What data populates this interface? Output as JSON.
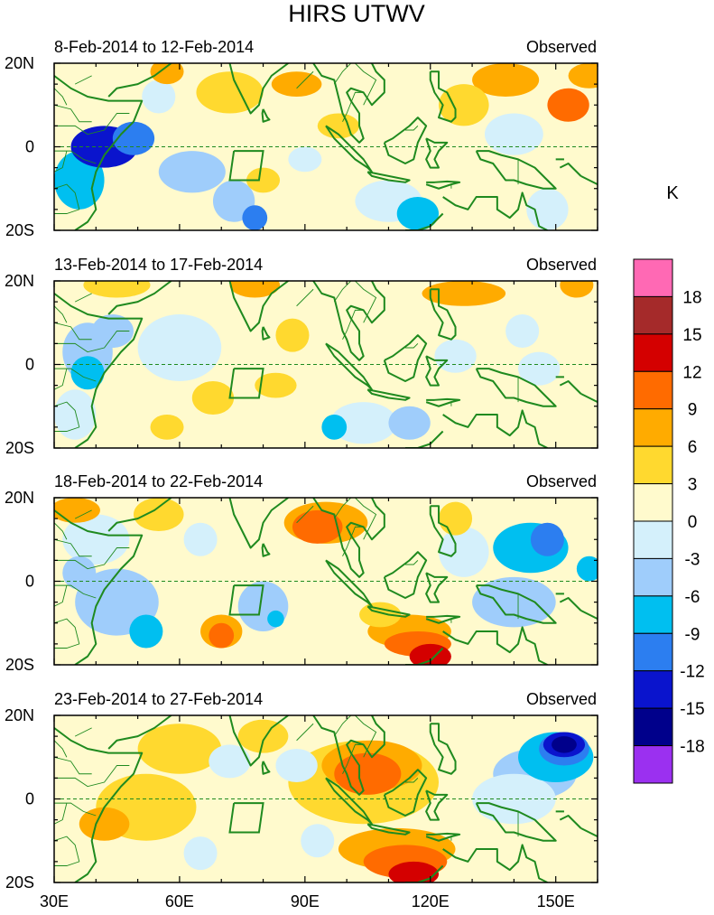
{
  "chart_data": {
    "type": "heatmap",
    "title": "HIRS UTWV",
    "units_label": "K",
    "xaxis": {
      "range": [
        30,
        160
      ],
      "ticks": [
        30,
        60,
        90,
        120,
        150
      ],
      "tick_labels": [
        "30E",
        "60E",
        "90E",
        "120E",
        "150E"
      ]
    },
    "yaxis": {
      "range": [
        -20,
        20
      ],
      "ticks": [
        20,
        0,
        -20
      ],
      "tick_labels": [
        "20N",
        "0",
        "20S"
      ]
    },
    "colorbar": {
      "levels": [
        -18,
        -15,
        -12,
        -9,
        -6,
        -3,
        0,
        3,
        6,
        9,
        12,
        15,
        18
      ],
      "labels": [
        "18",
        "15",
        "12",
        "9",
        "6",
        "3",
        "0",
        "-3",
        "-6",
        "-9",
        "-12",
        "-15",
        "-18"
      ],
      "colors": [
        "#9b30f0",
        "#00008b",
        "#0a14cd",
        "#2c7ef0",
        "#00bff0",
        "#9fcdfb",
        "#d4f0fb",
        "#fffacd",
        "#ffd92f",
        "#ffab00",
        "#ff6b00",
        "#d40000",
        "#a52a2a",
        "#ff69b4"
      ]
    },
    "panels": [
      {
        "left_label": "8-Feb-2014 to 12-Feb-2014",
        "right_label": "Observed",
        "anomalies": [
          {
            "lon": 42,
            "lat": 0,
            "value": -15,
            "slon": 8,
            "slat": 5
          },
          {
            "lon": 49,
            "lat": 2,
            "value": -12,
            "slon": 5,
            "slat": 4
          },
          {
            "lon": 36,
            "lat": -8,
            "value": -9,
            "slon": 6,
            "slat": 7
          },
          {
            "lon": 63,
            "lat": -6,
            "value": -6,
            "slon": 8,
            "slat": 5
          },
          {
            "lon": 78,
            "lat": -17,
            "value": -12,
            "slon": 3,
            "slat": 3
          },
          {
            "lon": 73,
            "lat": -13,
            "value": -6,
            "slon": 5,
            "slat": 5
          },
          {
            "lon": 55,
            "lat": 12,
            "value": -3,
            "slon": 4,
            "slat": 4
          },
          {
            "lon": 90,
            "lat": -3,
            "value": -3,
            "slon": 4,
            "slat": 3
          },
          {
            "lon": 117,
            "lat": -16,
            "value": -9,
            "slon": 5,
            "slat": 4
          },
          {
            "lon": 110,
            "lat": -13,
            "value": -3,
            "slon": 8,
            "slat": 5
          },
          {
            "lon": 140,
            "lat": 3,
            "value": -3,
            "slon": 7,
            "slat": 5
          },
          {
            "lon": 148,
            "lat": -15,
            "value": -3,
            "slon": 5,
            "slat": 5
          },
          {
            "lon": 57,
            "lat": 18,
            "value": 6,
            "slon": 4,
            "slat": 3
          },
          {
            "lon": 72,
            "lat": 13,
            "value": 3,
            "slon": 8,
            "slat": 5
          },
          {
            "lon": 88,
            "lat": 15,
            "value": 6,
            "slon": 6,
            "slat": 3
          },
          {
            "lon": 98,
            "lat": 5,
            "value": 3,
            "slon": 5,
            "slat": 3
          },
          {
            "lon": 128,
            "lat": 10,
            "value": 3,
            "slon": 6,
            "slat": 5
          },
          {
            "lon": 138,
            "lat": 16,
            "value": 6,
            "slon": 8,
            "slat": 4
          },
          {
            "lon": 153,
            "lat": 10,
            "value": 9,
            "slon": 5,
            "slat": 4
          },
          {
            "lon": 158,
            "lat": 17,
            "value": 6,
            "slon": 5,
            "slat": 3
          },
          {
            "lon": 80,
            "lat": -8,
            "value": 3,
            "slon": 4,
            "slat": 3
          }
        ]
      },
      {
        "left_label": "13-Feb-2014 to 17-Feb-2014",
        "right_label": "Observed",
        "anomalies": [
          {
            "lon": 38,
            "lat": -2,
            "value": -9,
            "slon": 4,
            "slat": 4
          },
          {
            "lon": 44,
            "lat": 8,
            "value": -6,
            "slon": 5,
            "slat": 4
          },
          {
            "lon": 38,
            "lat": 3,
            "value": -6,
            "slon": 6,
            "slat": 7
          },
          {
            "lon": 60,
            "lat": 4,
            "value": -3,
            "slon": 10,
            "slat": 8
          },
          {
            "lon": 35,
            "lat": -12,
            "value": -3,
            "slon": 5,
            "slat": 6
          },
          {
            "lon": 97,
            "lat": -15,
            "value": -9,
            "slon": 3,
            "slat": 3
          },
          {
            "lon": 115,
            "lat": -14,
            "value": -6,
            "slon": 5,
            "slat": 4
          },
          {
            "lon": 104,
            "lat": -14,
            "value": -3,
            "slon": 8,
            "slat": 5
          },
          {
            "lon": 146,
            "lat": -1,
            "value": -3,
            "slon": 5,
            "slat": 4
          },
          {
            "lon": 142,
            "lat": 8,
            "value": -3,
            "slon": 4,
            "slat": 4
          },
          {
            "lon": 126,
            "lat": 2,
            "value": -3,
            "slon": 5,
            "slat": 4
          },
          {
            "lon": 45,
            "lat": 19,
            "value": 3,
            "slon": 8,
            "slat": 3
          },
          {
            "lon": 78,
            "lat": 19,
            "value": 6,
            "slon": 6,
            "slat": 3
          },
          {
            "lon": 128,
            "lat": 17,
            "value": 6,
            "slon": 10,
            "slat": 3
          },
          {
            "lon": 155,
            "lat": 19,
            "value": 6,
            "slon": 4,
            "slat": 3
          },
          {
            "lon": 87,
            "lat": 7,
            "value": 3,
            "slon": 4,
            "slat": 4
          },
          {
            "lon": 57,
            "lat": -15,
            "value": 3,
            "slon": 4,
            "slat": 3
          },
          {
            "lon": 68,
            "lat": -8,
            "value": 3,
            "slon": 5,
            "slat": 4
          },
          {
            "lon": 83,
            "lat": -5,
            "value": 3,
            "slon": 5,
            "slat": 3
          }
        ]
      },
      {
        "left_label": "18-Feb-2014 to 22-Feb-2014",
        "right_label": "Observed",
        "anomalies": [
          {
            "lon": 148,
            "lat": 10,
            "value": -12,
            "slon": 4,
            "slat": 4
          },
          {
            "lon": 144,
            "lat": 8,
            "value": -9,
            "slon": 9,
            "slat": 6
          },
          {
            "lon": 158,
            "lat": 3,
            "value": -9,
            "slon": 3,
            "slat": 3
          },
          {
            "lon": 140,
            "lat": -5,
            "value": -6,
            "slon": 10,
            "slat": 6
          },
          {
            "lon": 128,
            "lat": 7,
            "value": -3,
            "slon": 6,
            "slat": 6
          },
          {
            "lon": 52,
            "lat": -12,
            "value": -9,
            "slon": 4,
            "slat": 4
          },
          {
            "lon": 45,
            "lat": -5,
            "value": -6,
            "slon": 10,
            "slat": 8
          },
          {
            "lon": 40,
            "lat": 10,
            "value": -3,
            "slon": 8,
            "slat": 6
          },
          {
            "lon": 36,
            "lat": 2,
            "value": -6,
            "slon": 4,
            "slat": 4
          },
          {
            "lon": 83,
            "lat": -9,
            "value": -9,
            "slon": 2,
            "slat": 2
          },
          {
            "lon": 80,
            "lat": -6,
            "value": -6,
            "slon": 6,
            "slat": 6
          },
          {
            "lon": 65,
            "lat": 10,
            "value": -3,
            "slon": 4,
            "slat": 4
          },
          {
            "lon": 120,
            "lat": -18,
            "value": 12,
            "slon": 5,
            "slat": 3
          },
          {
            "lon": 117,
            "lat": -15,
            "value": 9,
            "slon": 8,
            "slat": 3
          },
          {
            "lon": 115,
            "lat": -12,
            "value": 6,
            "slon": 10,
            "slat": 4
          },
          {
            "lon": 70,
            "lat": -13,
            "value": 9,
            "slon": 3,
            "slat": 3
          },
          {
            "lon": 70,
            "lat": -12,
            "value": 6,
            "slon": 5,
            "slat": 4
          },
          {
            "lon": 93,
            "lat": 13,
            "value": 9,
            "slon": 6,
            "slat": 4
          },
          {
            "lon": 95,
            "lat": 14,
            "value": 6,
            "slon": 10,
            "slat": 5
          },
          {
            "lon": 35,
            "lat": 17,
            "value": 6,
            "slon": 6,
            "slat": 3
          },
          {
            "lon": 55,
            "lat": 16,
            "value": 3,
            "slon": 6,
            "slat": 4
          },
          {
            "lon": 126,
            "lat": 15,
            "value": 3,
            "slon": 4,
            "slat": 4
          },
          {
            "lon": 108,
            "lat": -8,
            "value": 3,
            "slon": 5,
            "slat": 3
          }
        ]
      },
      {
        "left_label": "23-Feb-2014 to 27-Feb-2014",
        "right_label": "Observed",
        "anomalies": [
          {
            "lon": 152,
            "lat": 13,
            "value": -18,
            "slon": 3,
            "slat": 2
          },
          {
            "lon": 152,
            "lat": 13,
            "value": -15,
            "slon": 5,
            "slat": 3
          },
          {
            "lon": 152,
            "lat": 12,
            "value": -12,
            "slon": 6,
            "slat": 4
          },
          {
            "lon": 150,
            "lat": 10,
            "value": -9,
            "slon": 9,
            "slat": 6
          },
          {
            "lon": 145,
            "lat": 6,
            "value": -6,
            "slon": 10,
            "slat": 6
          },
          {
            "lon": 140,
            "lat": 0,
            "value": -3,
            "slon": 10,
            "slat": 6
          },
          {
            "lon": 88,
            "lat": 8,
            "value": -3,
            "slon": 5,
            "slat": 4
          },
          {
            "lon": 72,
            "lat": 9,
            "value": -3,
            "slon": 5,
            "slat": 4
          },
          {
            "lon": 65,
            "lat": -13,
            "value": -3,
            "slon": 4,
            "slat": 4
          },
          {
            "lon": 93,
            "lat": -10,
            "value": -3,
            "slon": 4,
            "slat": 4
          },
          {
            "lon": 116,
            "lat": -18,
            "value": 12,
            "slon": 6,
            "slat": 3
          },
          {
            "lon": 114,
            "lat": -15,
            "value": 9,
            "slon": 10,
            "slat": 4
          },
          {
            "lon": 112,
            "lat": -12,
            "value": 6,
            "slon": 14,
            "slat": 5
          },
          {
            "lon": 105,
            "lat": 6,
            "value": 9,
            "slon": 8,
            "slat": 5
          },
          {
            "lon": 106,
            "lat": 8,
            "value": 6,
            "slon": 12,
            "slat": 6
          },
          {
            "lon": 104,
            "lat": 4,
            "value": 3,
            "slon": 18,
            "slat": 10
          },
          {
            "lon": 42,
            "lat": -6,
            "value": 6,
            "slon": 6,
            "slat": 4
          },
          {
            "lon": 52,
            "lat": -2,
            "value": 3,
            "slon": 12,
            "slat": 8
          },
          {
            "lon": 60,
            "lat": 12,
            "value": 3,
            "slon": 10,
            "slat": 6
          },
          {
            "lon": 80,
            "lat": 15,
            "value": 3,
            "slon": 6,
            "slat": 4
          }
        ]
      }
    ]
  }
}
